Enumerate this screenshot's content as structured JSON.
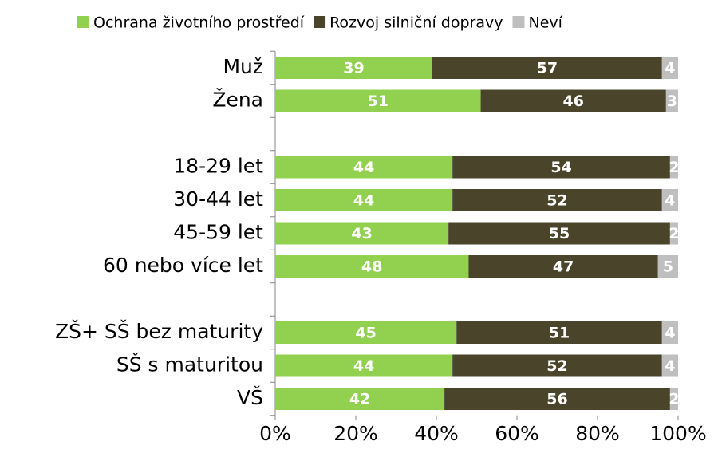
{
  "chart_data": {
    "type": "stacked_bar_horizontal",
    "categories": [
      "Muž",
      "Žena",
      null,
      "18-29 let",
      "30-44 let",
      "45-59 let",
      "60 nebo více let",
      null,
      "ZŠ+ SŠ bez maturity",
      "SŠ s maturitou",
      "VŠ"
    ],
    "series": [
      {
        "name": "Ochrana životního prostředí",
        "color": "#92d050",
        "values": [
          39,
          51,
          null,
          44,
          44,
          43,
          48,
          null,
          45,
          44,
          42
        ]
      },
      {
        "name": "Rozvoj silniční dopravy",
        "color": "#4a452a",
        "values": [
          57,
          46,
          null,
          54,
          52,
          55,
          47,
          null,
          51,
          52,
          56
        ]
      },
      {
        "name": "Neví",
        "color": "#bfbfbf",
        "values": [
          4,
          3,
          null,
          2,
          4,
          2,
          5,
          null,
          4,
          4,
          2
        ]
      }
    ],
    "xlim": [
      0,
      100
    ],
    "xticks": [
      {
        "value": 0,
        "label": "0%"
      },
      {
        "value": 20,
        "label": "20%"
      },
      {
        "value": 40,
        "label": "40%"
      },
      {
        "value": 60,
        "label": "60%"
      },
      {
        "value": 80,
        "label": "80%"
      },
      {
        "value": 100,
        "label": "100%"
      }
    ],
    "legend": "top"
  }
}
